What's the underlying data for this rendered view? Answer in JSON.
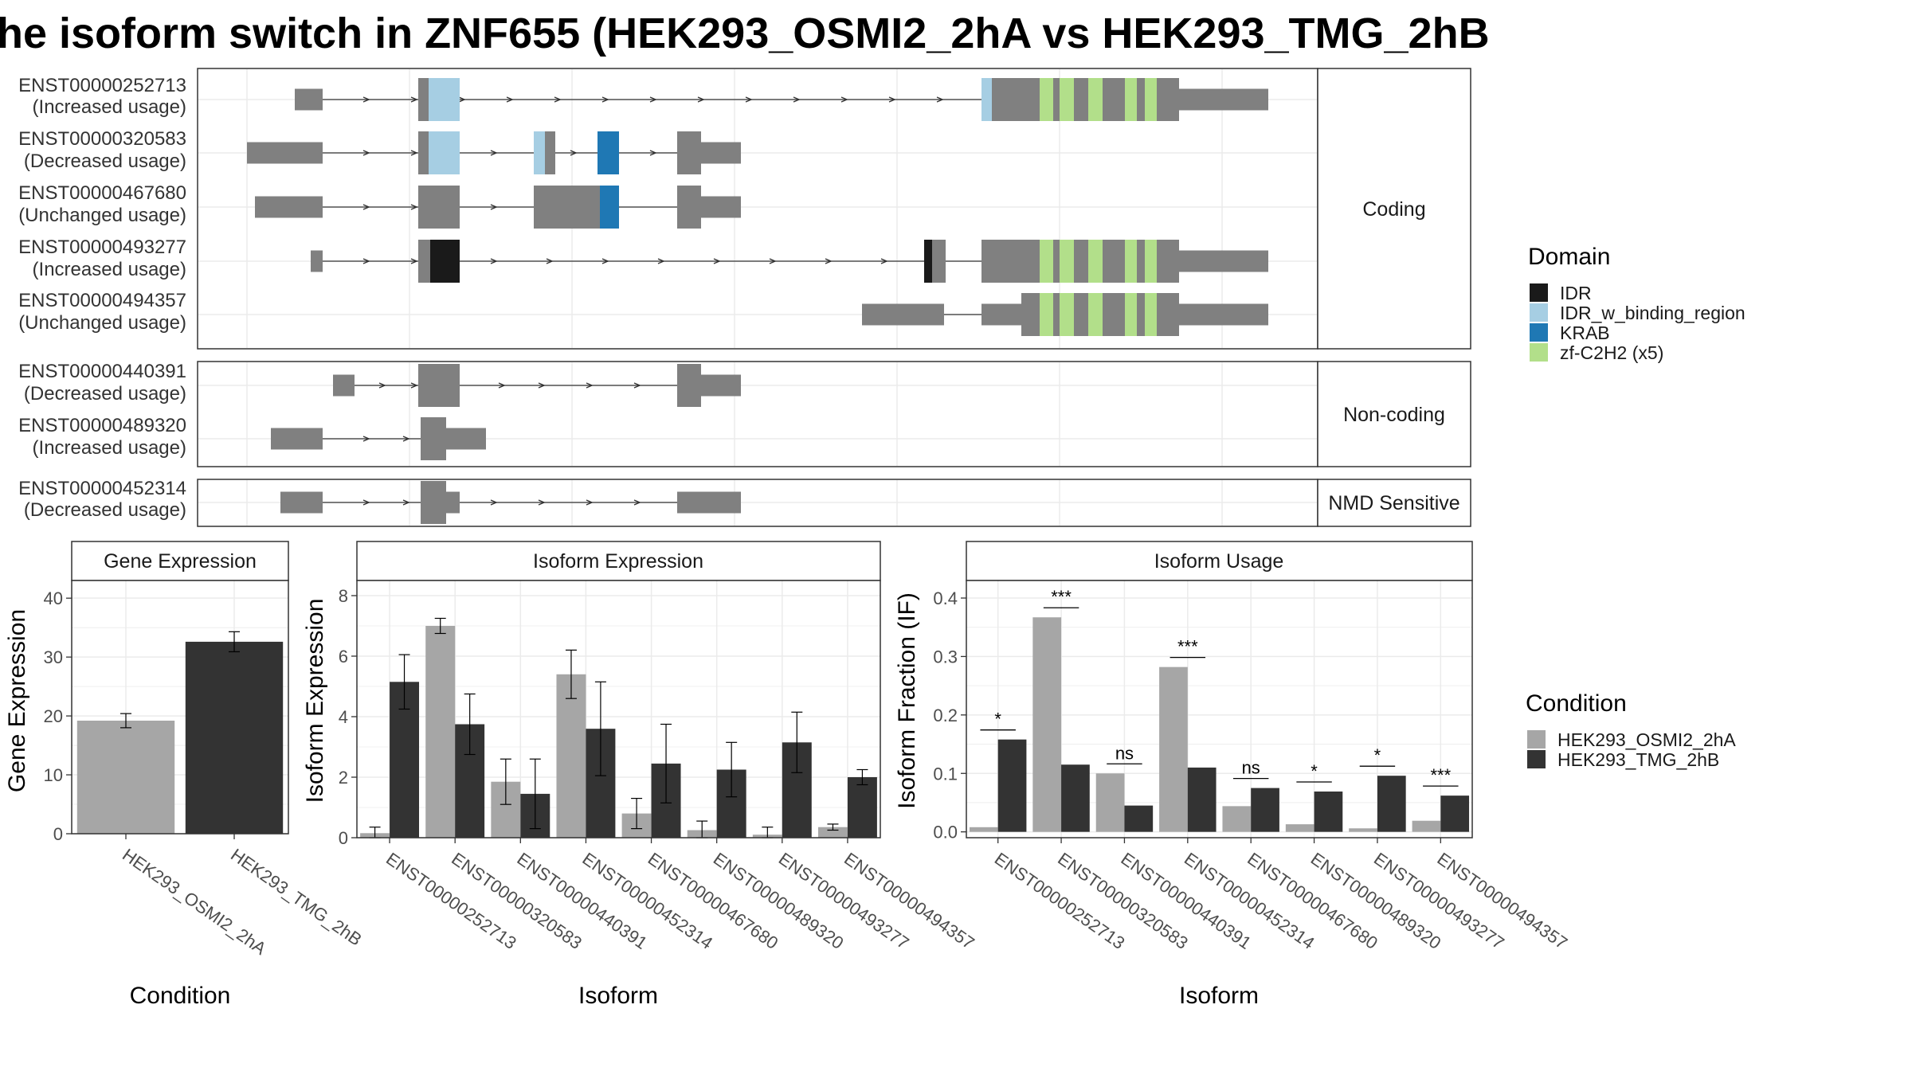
{
  "title": "he isoform switch in ZNF655 (HEK293_OSMI2_2hA vs HEK293_TMG_2hB",
  "colors": {
    "exon": "#808080",
    "IDR": "#1a1a1a",
    "IDR_w_binding_region": "#a6cee3",
    "KRAB": "#1f78b4",
    "zf-C2H2 (x5)": "#b2df8a",
    "cond1": "#a6a6a6",
    "cond2": "#333333"
  },
  "domain_legend": {
    "title": "Domain",
    "items": [
      {
        "key": "IDR",
        "label": "IDR"
      },
      {
        "key": "IDR_w_binding_region",
        "label": "IDR_w_binding_region"
      },
      {
        "key": "KRAB",
        "label": "KRAB"
      },
      {
        "key": "zf-C2H2 (x5)",
        "label": "zf-C2H2 (x5)"
      }
    ]
  },
  "condition_legend": {
    "title": "Condition",
    "items": [
      {
        "key": "cond1",
        "label": "HEK293_OSMI2_2hA"
      },
      {
        "key": "cond2",
        "label": "HEK293_TMG_2hB"
      }
    ]
  },
  "chart_data": [
    {
      "type": "gene-structure",
      "groups": [
        {
          "label": "Coding",
          "transcripts": [
            {
              "id": "ENST00000252713",
              "usage": "(Increased usage)"
            },
            {
              "id": "ENST00000320583",
              "usage": "(Decreased usage)"
            },
            {
              "id": "ENST00000467680",
              "usage": "(Unchanged usage)"
            },
            {
              "id": "ENST00000493277",
              "usage": "(Increased usage)"
            },
            {
              "id": "ENST00000494357",
              "usage": "(Unchanged usage)"
            }
          ]
        },
        {
          "label": "Non-coding",
          "transcripts": [
            {
              "id": "ENST00000440391",
              "usage": "(Decreased usage)"
            },
            {
              "id": "ENST00000489320",
              "usage": "(Increased usage)"
            }
          ]
        },
        {
          "label": "NMD Sensitive",
          "transcripts": [
            {
              "id": "ENST00000452314",
              "usage": "(Decreased usage)"
            }
          ]
        }
      ]
    },
    {
      "type": "bar",
      "title": "Gene Expression",
      "xlabel": "Condition",
      "ylabel": "Gene Expression",
      "ylim": [
        0,
        43
      ],
      "yticks": [
        "0",
        "10",
        "20",
        "30",
        "40"
      ],
      "categories": [
        "HEK293_OSMI2_2hA",
        "HEK293_TMG_2hB"
      ],
      "values": [
        19.2,
        32.6
      ],
      "errors": [
        1.2,
        1.7
      ]
    },
    {
      "type": "bar",
      "title": "Isoform Expression",
      "xlabel": "Isoform",
      "ylabel": "Isoform Expression",
      "ylim": [
        0,
        8.5
      ],
      "yticks": [
        "0",
        "2",
        "4",
        "6",
        "8"
      ],
      "categories": [
        "ENST00000252713",
        "ENST00000320583",
        "ENST00000440391",
        "ENST00000452314",
        "ENST00000467680",
        "ENST00000489320",
        "ENST00000493277",
        "ENST00000494357"
      ],
      "series": [
        {
          "name": "HEK293_OSMI2_2hA",
          "values": [
            0.15,
            7.0,
            1.85,
            5.4,
            0.8,
            0.25,
            0.1,
            0.35
          ],
          "errors": [
            0.2,
            0.25,
            0.75,
            0.8,
            0.5,
            0.3,
            0.25,
            0.1
          ]
        },
        {
          "name": "HEK293_TMG_2hB",
          "values": [
            5.15,
            3.75,
            1.45,
            3.6,
            2.45,
            2.25,
            3.15,
            2.0
          ],
          "errors": [
            0.9,
            1.0,
            1.15,
            1.55,
            1.3,
            0.9,
            1.0,
            0.25
          ]
        }
      ]
    },
    {
      "type": "bar",
      "title": "Isoform Usage",
      "xlabel": "Isoform",
      "ylabel": "Isoform Fraction (IF)",
      "ylim": [
        -0.01,
        0.43
      ],
      "yticks": [
        "0.0",
        "0.1",
        "0.2",
        "0.3",
        "0.4"
      ],
      "categories": [
        "ENST00000252713",
        "ENST00000320583",
        "ENST00000440391",
        "ENST00000452314",
        "ENST00000467680",
        "ENST00000489320",
        "ENST00000493277",
        "ENST00000494357"
      ],
      "series": [
        {
          "name": "HEK293_OSMI2_2hA",
          "values": [
            0.008,
            0.367,
            0.1,
            0.282,
            0.044,
            0.013,
            0.006,
            0.019
          ]
        },
        {
          "name": "HEK293_TMG_2hB",
          "values": [
            0.158,
            0.115,
            0.045,
            0.11,
            0.075,
            0.069,
            0.096,
            0.062
          ]
        }
      ],
      "significance": [
        "*",
        "***",
        "ns",
        "***",
        "ns",
        "*",
        "*",
        "***"
      ]
    }
  ]
}
